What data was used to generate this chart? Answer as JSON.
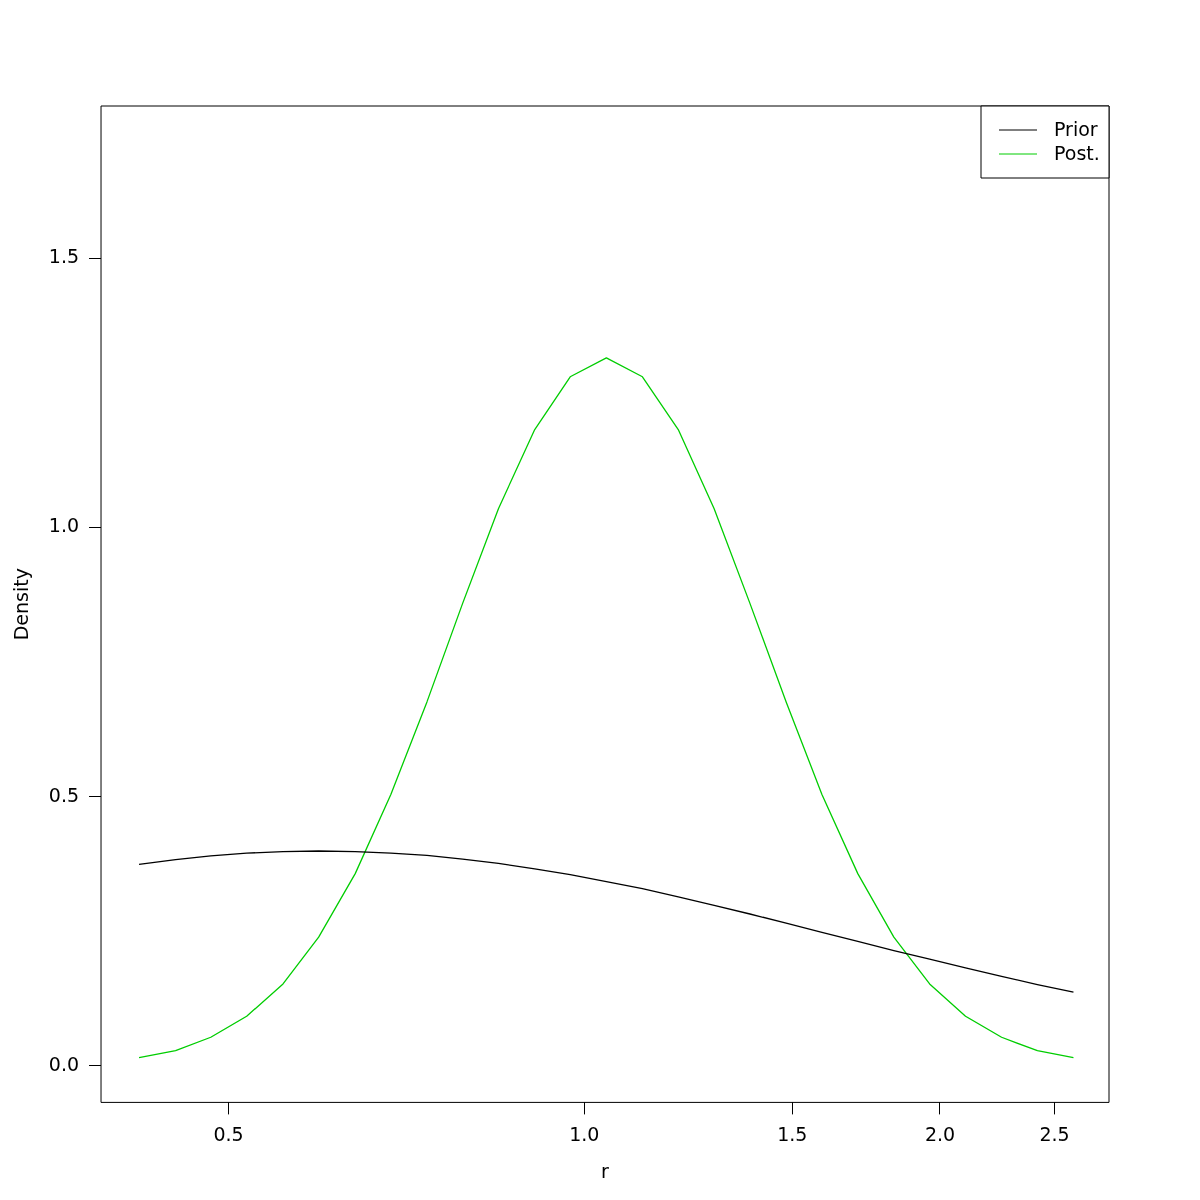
{
  "chart_data": {
    "type": "line",
    "xlabel": "r",
    "ylabel": "Density",
    "log": "x",
    "x": [
      0.42,
      0.451,
      0.483,
      0.518,
      0.556,
      0.596,
      0.64,
      0.686,
      0.736,
      0.789,
      0.846,
      0.908,
      0.973,
      1.044,
      1.12,
      1.201,
      1.288,
      1.381,
      1.482,
      1.589,
      1.704,
      1.828,
      1.96,
      2.102,
      2.255,
      2.418,
      2.594
    ],
    "series": [
      {
        "name": "Prior",
        "color": "#000000",
        "values": [
          0.374,
          0.383,
          0.39,
          0.395,
          0.398,
          0.399,
          0.398,
          0.395,
          0.391,
          0.384,
          0.376,
          0.366,
          0.355,
          0.342,
          0.329,
          0.314,
          0.298,
          0.282,
          0.265,
          0.248,
          0.231,
          0.214,
          0.198,
          0.182,
          0.166,
          0.151,
          0.137
        ]
      },
      {
        "name": "Post.",
        "color": "#00cd00",
        "values": [
          0.015,
          0.028,
          0.053,
          0.092,
          0.152,
          0.239,
          0.357,
          0.504,
          0.676,
          0.859,
          1.035,
          1.182,
          1.28,
          1.315,
          1.28,
          1.182,
          1.035,
          0.859,
          0.676,
          0.504,
          0.357,
          0.239,
          0.152,
          0.092,
          0.053,
          0.028,
          0.015
        ]
      }
    ],
    "xlim": [
      0.39,
      2.78
    ],
    "xticks": [
      0.5,
      {
        "value": 1,
        "label": "1.0"
      },
      1.5,
      {
        "value": 2,
        "label": "2.0"
      },
      2.5
    ],
    "ylim": [
      -0.068,
      1.783
    ],
    "yticks": [
      {
        "value": 0,
        "label": "0.0"
      },
      0.5,
      {
        "value": 1,
        "label": "1.0"
      },
      1.5
    ],
    "grid": false,
    "legend": "top right",
    "marker": "none",
    "line_style": "solid"
  }
}
